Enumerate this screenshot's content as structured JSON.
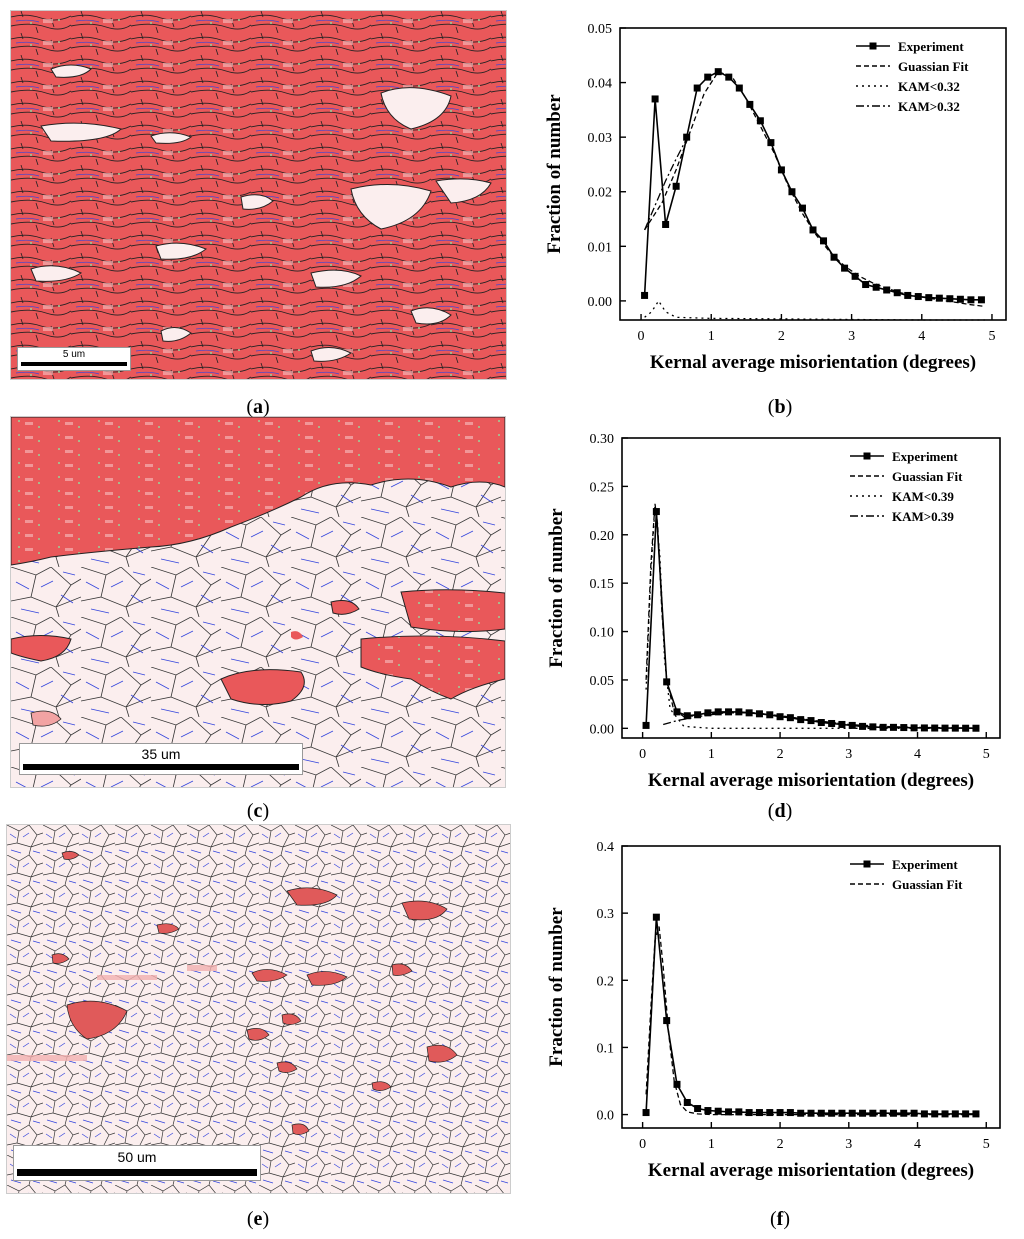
{
  "panels": [
    {
      "id": "a",
      "label_open": "(",
      "label_letter": "a",
      "label_close": ")",
      "scale_text": "5 um",
      "fill": "red"
    },
    {
      "id": "b",
      "label_open": "(",
      "label_letter": "b",
      "label_close": ")"
    },
    {
      "id": "c",
      "label_open": "(",
      "label_letter": "c",
      "label_close": ")",
      "scale_text": "35 um",
      "fill": "mixed"
    },
    {
      "id": "d",
      "label_open": "(",
      "label_letter": "d",
      "label_close": ")"
    },
    {
      "id": "e",
      "label_open": "(",
      "label_letter": "e",
      "label_close": ")",
      "scale_text": "50 um",
      "fill": "light"
    },
    {
      "id": "f",
      "label_open": "(",
      "label_letter": "f",
      "label_close": ")"
    }
  ],
  "colors": {
    "red": "#e8484a",
    "light_red": "#f7c9c9",
    "grain_bg": "#fbeeee",
    "boundary": "#222222",
    "twin": "#3344dd",
    "green": "#9ad49a"
  },
  "chart_data": [
    {
      "type": "line",
      "panel": "b",
      "title": "",
      "xlabel": "Kernal average misorientation (degrees)",
      "ylabel": "Fraction of number",
      "xlim": [
        -0.3,
        5.2
      ],
      "ylim": [
        -0.0035,
        0.05
      ],
      "xticks": [
        0,
        1,
        2,
        3,
        4,
        5
      ],
      "yticks": [
        0.0,
        0.01,
        0.02,
        0.03,
        0.04,
        0.05
      ],
      "ytick_labels": [
        "0.00",
        "0.01",
        "0.02",
        "0.03",
        "0.04",
        "0.05"
      ],
      "legend_position": "top-right",
      "series": [
        {
          "name": "Experiment",
          "style": "solid-marker",
          "x": [
            0.05,
            0.2,
            0.35,
            0.5,
            0.65,
            0.8,
            0.95,
            1.1,
            1.25,
            1.4,
            1.55,
            1.7,
            1.85,
            2.0,
            2.15,
            2.3,
            2.45,
            2.6,
            2.75,
            2.9,
            3.05,
            3.2,
            3.35,
            3.5,
            3.65,
            3.8,
            3.95,
            4.1,
            4.25,
            4.4,
            4.55,
            4.7,
            4.85
          ],
          "y": [
            0.001,
            0.037,
            0.014,
            0.021,
            0.03,
            0.039,
            0.041,
            0.042,
            0.041,
            0.039,
            0.036,
            0.033,
            0.029,
            0.024,
            0.02,
            0.017,
            0.013,
            0.011,
            0.008,
            0.006,
            0.0045,
            0.003,
            0.0025,
            0.002,
            0.0015,
            0.001,
            0.0008,
            0.0006,
            0.0005,
            0.0004,
            0.0003,
            0.0002,
            0.0002
          ]
        },
        {
          "name": "Guassian Fit",
          "style": "dashed",
          "x": [
            0.05,
            0.3,
            0.5,
            0.7,
            0.9,
            1.1,
            1.3,
            1.5,
            1.7,
            1.9,
            2.1,
            2.3,
            2.5,
            2.7,
            2.9,
            3.1,
            3.3,
            3.5,
            3.7,
            3.9,
            4.1,
            4.3,
            4.5,
            4.7,
            4.9
          ],
          "y": [
            0.013,
            0.018,
            0.024,
            0.031,
            0.038,
            0.042,
            0.041,
            0.037,
            0.032,
            0.027,
            0.021,
            0.016,
            0.012,
            0.0088,
            0.0064,
            0.0046,
            0.0033,
            0.0023,
            0.0015,
            0.0009,
            0.0005,
            0.0001,
            -0.0003,
            -0.0007,
            -0.001
          ]
        },
        {
          "name": "KAM<0.32",
          "style": "dotted",
          "x": [
            0.05,
            0.15,
            0.25,
            0.35,
            0.5,
            1.0,
            2.0,
            3.0,
            4.0,
            4.9
          ],
          "y": [
            -0.003,
            -0.002,
            0.0,
            -0.002,
            -0.003,
            -0.0032,
            -0.0033,
            -0.0034,
            -0.0035,
            -0.0035
          ]
        },
        {
          "name": "KAM>0.32",
          "style": "dashdot",
          "x": [
            0.05,
            0.15,
            0.25,
            0.35,
            0.5,
            0.7
          ],
          "y": [
            0.013,
            0.016,
            0.019,
            0.022,
            0.026,
            0.031
          ]
        }
      ]
    },
    {
      "type": "line",
      "panel": "d",
      "title": "",
      "xlabel": "Kernal average misorientation (degrees)",
      "ylabel": "Fraction of number",
      "xlim": [
        -0.3,
        5.2
      ],
      "ylim": [
        -0.01,
        0.3
      ],
      "xticks": [
        0,
        1,
        2,
        3,
        4,
        5
      ],
      "yticks": [
        0.0,
        0.05,
        0.1,
        0.15,
        0.2,
        0.25,
        0.3
      ],
      "ytick_labels": [
        "0.00",
        "0.05",
        "0.10",
        "0.15",
        "0.20",
        "0.25",
        "0.30"
      ],
      "legend_position": "top-right",
      "series": [
        {
          "name": "Experiment",
          "style": "solid-marker",
          "x": [
            0.05,
            0.2,
            0.35,
            0.5,
            0.65,
            0.8,
            0.95,
            1.1,
            1.25,
            1.4,
            1.55,
            1.7,
            1.85,
            2.0,
            2.15,
            2.3,
            2.45,
            2.6,
            2.75,
            2.9,
            3.05,
            3.2,
            3.35,
            3.5,
            3.65,
            3.8,
            3.95,
            4.1,
            4.25,
            4.4,
            4.55,
            4.7,
            4.85
          ],
          "y": [
            0.003,
            0.224,
            0.048,
            0.017,
            0.013,
            0.014,
            0.016,
            0.017,
            0.017,
            0.017,
            0.016,
            0.015,
            0.014,
            0.012,
            0.011,
            0.009,
            0.008,
            0.006,
            0.005,
            0.004,
            0.003,
            0.002,
            0.0015,
            0.001,
            0.001,
            0.0008,
            0.0005,
            0.0004,
            0.0003,
            0.0002,
            0.0002,
            0.0001,
            0.0001
          ]
        },
        {
          "name": "Guassian Fit",
          "style": "dashed",
          "x": [
            0.05,
            0.12,
            0.18,
            0.22,
            0.28,
            0.35,
            0.45,
            0.6,
            0.8,
            1.0,
            1.3,
            1.6,
            2.0,
            2.5,
            3.0,
            3.5,
            4.0,
            4.5,
            4.9
          ],
          "y": [
            0.05,
            0.17,
            0.232,
            0.21,
            0.12,
            0.05,
            0.02,
            0.012,
            0.013,
            0.015,
            0.017,
            0.016,
            0.013,
            0.008,
            0.004,
            0.002,
            0.001,
            0.0005,
            0.0002
          ]
        },
        {
          "name": "KAM<0.39",
          "style": "dotted",
          "x": [
            0.05,
            0.12,
            0.18,
            0.25,
            0.32,
            0.4,
            0.6,
            1.0,
            2.0,
            3.0,
            4.0,
            4.9
          ],
          "y": [
            0.04,
            0.16,
            0.23,
            0.18,
            0.07,
            0.02,
            0.002,
            0.0,
            0.0,
            0.0,
            0.0,
            0.0
          ]
        },
        {
          "name": "KAM>0.39",
          "style": "dashdot",
          "x": [
            0.3,
            0.5,
            0.8,
            1.2,
            1.6,
            2.0,
            2.5,
            3.0
          ],
          "y": [
            0.004,
            0.008,
            0.012,
            0.016,
            0.016,
            0.013,
            0.008,
            0.004
          ]
        }
      ]
    },
    {
      "type": "line",
      "panel": "f",
      "title": "",
      "xlabel": "Kernal average misorientation (degrees)",
      "ylabel": "Fraction of number",
      "xlim": [
        -0.3,
        5.2
      ],
      "ylim": [
        -0.02,
        0.4
      ],
      "xticks": [
        0,
        1,
        2,
        3,
        4,
        5
      ],
      "yticks": [
        0.0,
        0.1,
        0.2,
        0.3,
        0.4
      ],
      "ytick_labels": [
        "0.0",
        "0.1",
        "0.2",
        "0.3",
        "0.4"
      ],
      "legend_position": "top-right",
      "series": [
        {
          "name": "Experiment",
          "style": "solid-marker",
          "x": [
            0.05,
            0.2,
            0.35,
            0.5,
            0.65,
            0.8,
            0.95,
            1.1,
            1.25,
            1.4,
            1.55,
            1.7,
            1.85,
            2.0,
            2.15,
            2.3,
            2.45,
            2.6,
            2.75,
            2.9,
            3.05,
            3.2,
            3.35,
            3.5,
            3.65,
            3.8,
            3.95,
            4.1,
            4.25,
            4.4,
            4.55,
            4.7,
            4.85
          ],
          "y": [
            0.003,
            0.294,
            0.14,
            0.045,
            0.018,
            0.009,
            0.006,
            0.005,
            0.004,
            0.004,
            0.003,
            0.003,
            0.003,
            0.003,
            0.003,
            0.002,
            0.002,
            0.002,
            0.002,
            0.002,
            0.002,
            0.002,
            0.002,
            0.002,
            0.002,
            0.002,
            0.002,
            0.001,
            0.001,
            0.001,
            0.001,
            0.001,
            0.001
          ]
        },
        {
          "name": "Guassian Fit",
          "style": "dashed",
          "x": [
            0.05,
            0.12,
            0.18,
            0.24,
            0.3,
            0.38,
            0.46,
            0.55,
            0.65,
            0.8,
            1.0,
            1.5,
            2.0,
            3.0,
            4.0,
            4.9
          ],
          "y": [
            0.03,
            0.16,
            0.26,
            0.28,
            0.22,
            0.12,
            0.05,
            0.015,
            0.004,
            0.001,
            0.0,
            0.0,
            0.0,
            0.0,
            0.0,
            0.0
          ]
        }
      ]
    }
  ]
}
